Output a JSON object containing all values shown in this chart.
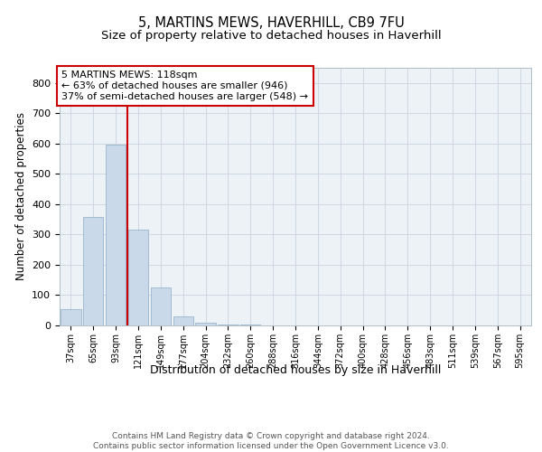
{
  "title": "5, MARTINS MEWS, HAVERHILL, CB9 7FU",
  "subtitle": "Size of property relative to detached houses in Haverhill",
  "xlabel": "Distribution of detached houses by size in Haverhill",
  "ylabel": "Number of detached properties",
  "bar_labels": [
    "37sqm",
    "65sqm",
    "93sqm",
    "121sqm",
    "149sqm",
    "177sqm",
    "204sqm",
    "232sqm",
    "260sqm",
    "288sqm",
    "316sqm",
    "344sqm",
    "372sqm",
    "400sqm",
    "428sqm",
    "456sqm",
    "483sqm",
    "511sqm",
    "539sqm",
    "567sqm",
    "595sqm"
  ],
  "bar_values": [
    55,
    357,
    597,
    315,
    125,
    30,
    8,
    4,
    2,
    0,
    0,
    0,
    0,
    0,
    0,
    0,
    0,
    0,
    0,
    0,
    0
  ],
  "bar_color": "#c9d9ea",
  "bar_edge_color": "#9ab4cc",
  "vline_color": "#cc0000",
  "annotation_text": "5 MARTINS MEWS: 118sqm\n← 63% of detached houses are smaller (946)\n37% of semi-detached houses are larger (548) →",
  "annotation_box_color": "#ffffff",
  "annotation_box_edge": "#cc0000",
  "ylim": [
    0,
    850
  ],
  "yticks": [
    0,
    100,
    200,
    300,
    400,
    500,
    600,
    700,
    800
  ],
  "grid_color": "#cdd8e3",
  "bg_color": "#edf2f7",
  "footer": "Contains HM Land Registry data © Crown copyright and database right 2024.\nContains public sector information licensed under the Open Government Licence v3.0.",
  "title_fontsize": 10.5,
  "subtitle_fontsize": 9.5,
  "xlabel_fontsize": 9,
  "ylabel_fontsize": 8.5,
  "tick_fontsize": 7,
  "annotation_fontsize": 8,
  "footer_fontsize": 6.5
}
